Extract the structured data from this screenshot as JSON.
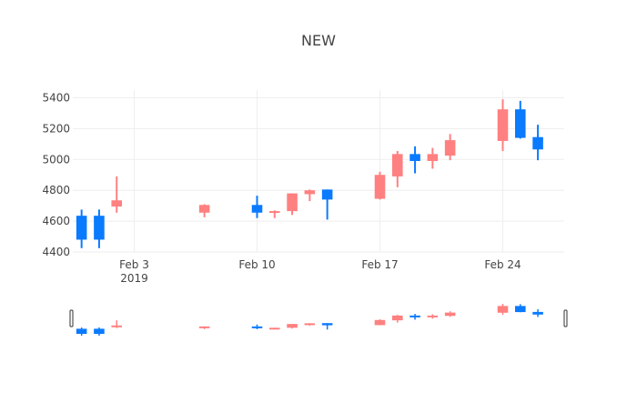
{
  "chart_data": {
    "type": "candlestick",
    "title": "NEW",
    "xlabel": "",
    "ylabel": "",
    "ylim": [
      4400,
      5450
    ],
    "xlim": [
      "2019-01-30T12:00",
      "2019-02-27T12:00"
    ],
    "grid": true,
    "legend": "none",
    "x_ticks": [
      {
        "date": "2019-02-03",
        "label": "Feb 3",
        "sublabel": "2019"
      },
      {
        "date": "2019-02-10",
        "label": "Feb 10",
        "sublabel": ""
      },
      {
        "date": "2019-02-17",
        "label": "Feb 17",
        "sublabel": ""
      },
      {
        "date": "2019-02-24",
        "label": "Feb 24",
        "sublabel": ""
      }
    ],
    "y_ticks": [
      4400,
      4600,
      4800,
      5000,
      5200,
      5400
    ],
    "colors": {
      "increasing": "#ff8080",
      "decreasing": "#0a7aff",
      "grid": "#eeeeee",
      "text": "#444444"
    },
    "candles": [
      {
        "date": "2019-01-31",
        "open": 4635,
        "high": 4675,
        "low": 4425,
        "close": 4480
      },
      {
        "date": "2019-02-01",
        "open": 4635,
        "high": 4675,
        "low": 4425,
        "close": 4480
      },
      {
        "date": "2019-02-02",
        "open": 4695,
        "high": 4890,
        "low": 4655,
        "close": 4735
      },
      {
        "date": "2019-02-07",
        "open": 4655,
        "high": 4710,
        "low": 4625,
        "close": 4705
      },
      {
        "date": "2019-02-10",
        "open": 4705,
        "high": 4765,
        "low": 4620,
        "close": 4655
      },
      {
        "date": "2019-02-11",
        "open": 4660,
        "high": 4670,
        "low": 4620,
        "close": 4665
      },
      {
        "date": "2019-02-12",
        "open": 4665,
        "high": 4780,
        "low": 4640,
        "close": 4780
      },
      {
        "date": "2019-02-13",
        "open": 4775,
        "high": 4805,
        "low": 4730,
        "close": 4800
      },
      {
        "date": "2019-02-14",
        "open": 4805,
        "high": 4805,
        "low": 4610,
        "close": 4740
      },
      {
        "date": "2019-02-17",
        "open": 4745,
        "high": 4920,
        "low": 4740,
        "close": 4900
      },
      {
        "date": "2019-02-18",
        "open": 4890,
        "high": 5055,
        "low": 4820,
        "close": 5035
      },
      {
        "date": "2019-02-19",
        "open": 5035,
        "high": 5085,
        "low": 4910,
        "close": 4990
      },
      {
        "date": "2019-02-20",
        "open": 4990,
        "high": 5075,
        "low": 4940,
        "close": 5035
      },
      {
        "date": "2019-02-21",
        "open": 5025,
        "high": 5165,
        "low": 4995,
        "close": 5125
      },
      {
        "date": "2019-02-24",
        "open": 5120,
        "high": 5390,
        "low": 5055,
        "close": 5325
      },
      {
        "date": "2019-02-25",
        "open": 5325,
        "high": 5380,
        "low": 5135,
        "close": 5140
      },
      {
        "date": "2019-02-26",
        "open": 5145,
        "high": 5225,
        "low": 4995,
        "close": 5065
      }
    ]
  },
  "rangeslider": {
    "visible": true
  }
}
